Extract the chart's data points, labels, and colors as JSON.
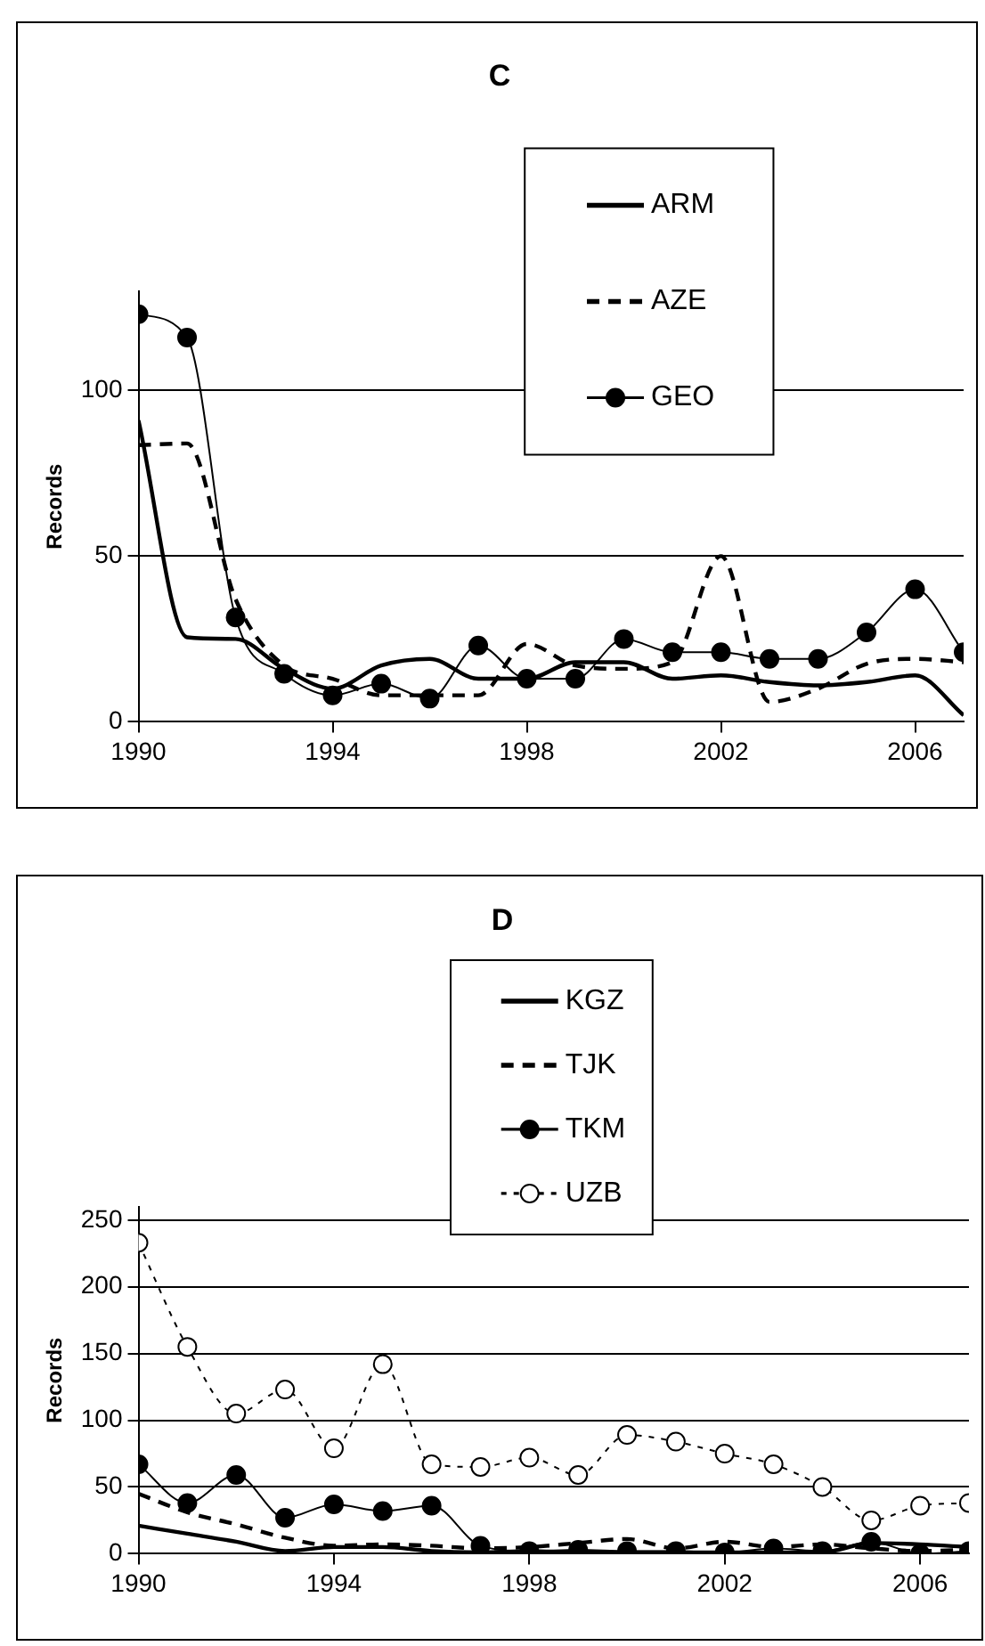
{
  "chart_data": [
    {
      "type": "line",
      "title": "C",
      "ylabel": "Records",
      "x": [
        1990,
        1991,
        1992,
        1993,
        1994,
        1995,
        1996,
        1997,
        1998,
        1999,
        2000,
        2001,
        2002,
        2003,
        2004,
        2005,
        2006,
        2007
      ],
      "series": [
        {
          "name": "ARM",
          "color": "#000000",
          "line_style": "solid",
          "marker": "none",
          "values": [
            91,
            25.5,
            25,
            16,
            10,
            17,
            19,
            13,
            13,
            18,
            18,
            13,
            14,
            12,
            11,
            12,
            14,
            2
          ]
        },
        {
          "name": "AZE",
          "color": "#000000",
          "line_style": "dashed",
          "marker": "none",
          "values": [
            83.5,
            84,
            37,
            17,
            13,
            8,
            8,
            8,
            23.5,
            17,
            16,
            18,
            50,
            6,
            10,
            17.5,
            19,
            18
          ]
        },
        {
          "name": "GEO",
          "color": "#000000",
          "line_style": "solid",
          "marker": "circle",
          "values": [
            123,
            116,
            31.5,
            14.5,
            8,
            11.5,
            7,
            23,
            13,
            13,
            25,
            21,
            21,
            19,
            19,
            27,
            40,
            21
          ]
        }
      ],
      "xlim": [
        1990,
        2007
      ],
      "xticks": [
        1990,
        1994,
        1998,
        2002,
        2006
      ],
      "ylim": [
        0,
        130
      ],
      "yticks": [
        0,
        50,
        100
      ],
      "grid": "y",
      "legend": "top"
    },
    {
      "type": "line",
      "title": "D",
      "ylabel": "Records",
      "x": [
        1990,
        1991,
        1992,
        1993,
        1994,
        1995,
        1996,
        1997,
        1998,
        1999,
        2000,
        2001,
        2002,
        2003,
        2004,
        2005,
        2006,
        2007
      ],
      "series": [
        {
          "name": "KGZ",
          "color": "#000000",
          "line_style": "solid",
          "marker": "none",
          "values": [
            21,
            15,
            9,
            2,
            5,
            5,
            2,
            1,
            2,
            1,
            1,
            1,
            1,
            1,
            1,
            8,
            7,
            5
          ]
        },
        {
          "name": "TJK",
          "color": "#000000",
          "line_style": "dashed",
          "marker": "none",
          "values": [
            45,
            31,
            22,
            12,
            6,
            7,
            6,
            4,
            5,
            8,
            11,
            4,
            9,
            5,
            7,
            4,
            2,
            3
          ]
        },
        {
          "name": "TKM",
          "color": "#000000",
          "line_style": "solid",
          "marker": "circle",
          "values": [
            67,
            38,
            59,
            27,
            37,
            32,
            36,
            6,
            2,
            3,
            2,
            2,
            1,
            4,
            2,
            9,
            0,
            2
          ]
        },
        {
          "name": "UZB",
          "color": "#000000",
          "line_style": "dotted",
          "marker": "circle",
          "values": [
            233,
            155,
            105,
            123,
            79,
            142,
            67,
            65,
            72,
            59,
            89,
            84,
            75,
            67,
            50,
            25,
            36,
            38
          ]
        }
      ],
      "xlim": [
        1990,
        2007
      ],
      "xticks": [
        1990,
        1994,
        1998,
        2002,
        2006
      ],
      "ylim": [
        0,
        260
      ],
      "yticks": [
        0,
        50,
        100,
        150,
        200,
        250
      ],
      "grid": "y",
      "legend": "top"
    }
  ]
}
